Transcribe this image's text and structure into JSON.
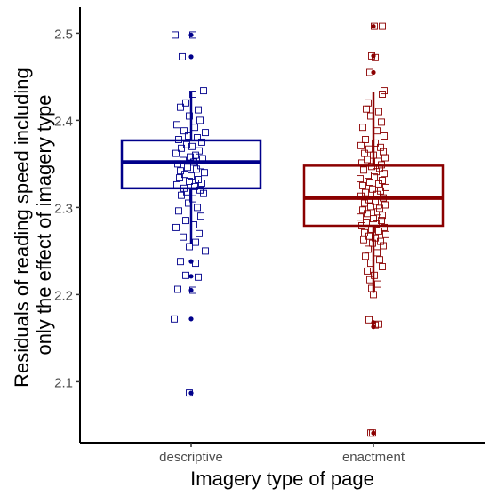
{
  "chart_data": {
    "type": "boxplot",
    "xlabel": "Imagery type of page",
    "ylabel_lines": [
      "Residuals of reading speed including",
      "only the effect of imagery type"
    ],
    "ylim": [
      2.03,
      2.53
    ],
    "yticks": [
      2.1,
      2.2,
      2.3,
      2.4,
      2.5
    ],
    "ytick_labels": [
      "2.1",
      "2.2",
      "2.3",
      "2.4",
      "2.5"
    ],
    "categories": [
      "descriptive",
      "enactment"
    ],
    "grid": false,
    "legend": "none",
    "groups": [
      {
        "category": "descriptive",
        "color": "#00008B",
        "box": {
          "lower_whisker": 2.258,
          "q1": 2.322,
          "median": 2.352,
          "q3": 2.377,
          "upper_whisker": 2.433
        },
        "outliers": [
          2.498,
          2.473,
          2.238,
          2.221,
          2.205,
          2.172,
          2.087
        ],
        "jitter_points": [
          [
            -0.18,
            2.498
          ],
          [
            0.02,
            2.498
          ],
          [
            -0.1,
            2.473
          ],
          [
            0.14,
            2.434
          ],
          [
            0.02,
            2.43
          ],
          [
            -0.06,
            2.42
          ],
          [
            -0.12,
            2.415
          ],
          [
            0.08,
            2.412
          ],
          [
            -0.02,
            2.405
          ],
          [
            0.1,
            2.4
          ],
          [
            -0.16,
            2.395
          ],
          [
            0.04,
            2.392
          ],
          [
            -0.08,
            2.388
          ],
          [
            0.16,
            2.386
          ],
          [
            -0.03,
            2.382
          ],
          [
            0.07,
            2.38
          ],
          [
            -0.14,
            2.378
          ],
          [
            0.12,
            2.375
          ],
          [
            -0.05,
            2.372
          ],
          [
            0.01,
            2.37
          ],
          [
            -0.11,
            2.368
          ],
          [
            0.09,
            2.365
          ],
          [
            -0.17,
            2.362
          ],
          [
            0.05,
            2.36
          ],
          [
            -0.01,
            2.358
          ],
          [
            0.13,
            2.356
          ],
          [
            -0.09,
            2.354
          ],
          [
            0.03,
            2.352
          ],
          [
            -0.15,
            2.35
          ],
          [
            0.11,
            2.348
          ],
          [
            -0.04,
            2.346
          ],
          [
            0.06,
            2.344
          ],
          [
            -0.12,
            2.342
          ],
          [
            0.15,
            2.34
          ],
          [
            -0.07,
            2.338
          ],
          [
            0.0,
            2.336
          ],
          [
            -0.13,
            2.334
          ],
          [
            0.08,
            2.332
          ],
          [
            -0.02,
            2.33
          ],
          [
            0.12,
            2.328
          ],
          [
            -0.16,
            2.326
          ],
          [
            0.04,
            2.324
          ],
          [
            -0.08,
            2.322
          ],
          [
            0.1,
            2.32
          ],
          [
            -0.05,
            2.318
          ],
          [
            0.14,
            2.316
          ],
          [
            -0.11,
            2.314
          ],
          [
            0.02,
            2.31
          ],
          [
            -0.03,
            2.305
          ],
          [
            0.07,
            2.3
          ],
          [
            -0.14,
            2.296
          ],
          [
            0.11,
            2.29
          ],
          [
            -0.06,
            2.285
          ],
          [
            0.03,
            2.28
          ],
          [
            -0.17,
            2.277
          ],
          [
            0.09,
            2.27
          ],
          [
            -0.09,
            2.266
          ],
          [
            0.05,
            2.26
          ],
          [
            -0.02,
            2.255
          ],
          [
            0.16,
            2.25
          ],
          [
            -0.12,
            2.238
          ],
          [
            0.05,
            2.236
          ],
          [
            -0.06,
            2.222
          ],
          [
            0.08,
            2.22
          ],
          [
            -0.15,
            2.206
          ],
          [
            0.02,
            2.205
          ],
          [
            -0.19,
            2.172
          ],
          [
            -0.02,
            2.087
          ]
        ]
      },
      {
        "category": "enactment",
        "color": "#8B0000",
        "box": {
          "lower_whisker": 2.202,
          "q1": 2.279,
          "median": 2.311,
          "q3": 2.348,
          "upper_whisker": 2.433
        },
        "outliers": [
          2.508,
          2.474,
          2.455,
          2.168,
          2.163,
          2.041
        ],
        "jitter_points": [
          [
            0.01,
            2.508
          ],
          [
            0.1,
            2.508
          ],
          [
            -0.02,
            2.474
          ],
          [
            0.02,
            2.472
          ],
          [
            -0.04,
            2.455
          ],
          [
            0.12,
            2.434
          ],
          [
            0.1,
            2.43
          ],
          [
            -0.06,
            2.42
          ],
          [
            -0.08,
            2.413
          ],
          [
            0.06,
            2.41
          ],
          [
            -0.03,
            2.405
          ],
          [
            0.09,
            2.398
          ],
          [
            -0.12,
            2.392
          ],
          [
            0.04,
            2.388
          ],
          [
            0.12,
            2.382
          ],
          [
            -0.09,
            2.378
          ],
          [
            0.02,
            2.374
          ],
          [
            -0.14,
            2.371
          ],
          [
            0.08,
            2.369
          ],
          [
            -0.05,
            2.367
          ],
          [
            0.11,
            2.364
          ],
          [
            -0.1,
            2.362
          ],
          [
            0.0,
            2.36
          ],
          [
            0.13,
            2.357
          ],
          [
            -0.07,
            2.355
          ],
          [
            0.05,
            2.353
          ],
          [
            -0.13,
            2.351
          ],
          [
            0.09,
            2.349
          ],
          [
            -0.02,
            2.347
          ],
          [
            0.07,
            2.345
          ],
          [
            -0.11,
            2.343
          ],
          [
            0.03,
            2.341
          ],
          [
            0.12,
            2.339
          ],
          [
            -0.06,
            2.337
          ],
          [
            0.01,
            2.335
          ],
          [
            -0.15,
            2.333
          ],
          [
            0.1,
            2.331
          ],
          [
            -0.04,
            2.329
          ],
          [
            0.06,
            2.327
          ],
          [
            -0.12,
            2.325
          ],
          [
            0.14,
            2.323
          ],
          [
            -0.01,
            2.321
          ],
          [
            0.08,
            2.319
          ],
          [
            -0.09,
            2.317
          ],
          [
            0.04,
            2.315
          ],
          [
            -0.14,
            2.313
          ],
          [
            0.11,
            2.311
          ],
          [
            -0.05,
            2.309
          ],
          [
            0.02,
            2.307
          ],
          [
            -0.1,
            2.305
          ],
          [
            0.13,
            2.303
          ],
          [
            -0.03,
            2.301
          ],
          [
            0.07,
            2.299
          ],
          [
            -0.12,
            2.297
          ],
          [
            0.05,
            2.295
          ],
          [
            -0.07,
            2.293
          ],
          [
            0.1,
            2.291
          ],
          [
            -0.15,
            2.289
          ],
          [
            0.0,
            2.287
          ],
          [
            0.09,
            2.285
          ],
          [
            -0.08,
            2.283
          ],
          [
            0.03,
            2.281
          ],
          [
            -0.13,
            2.279
          ],
          [
            0.12,
            2.277
          ],
          [
            -0.02,
            2.275
          ],
          [
            0.06,
            2.273
          ],
          [
            -0.1,
            2.271
          ],
          [
            0.14,
            2.269
          ],
          [
            -0.05,
            2.267
          ],
          [
            0.02,
            2.265
          ],
          [
            -0.11,
            2.263
          ],
          [
            0.08,
            2.261
          ],
          [
            -0.01,
            2.259
          ],
          [
            0.11,
            2.256
          ],
          [
            -0.06,
            2.252
          ],
          [
            0.04,
            2.248
          ],
          [
            -0.09,
            2.244
          ],
          [
            0.07,
            2.24
          ],
          [
            -0.03,
            2.236
          ],
          [
            0.1,
            2.232
          ],
          [
            -0.07,
            2.227
          ],
          [
            0.01,
            2.222
          ],
          [
            -0.04,
            2.217
          ],
          [
            0.05,
            2.212
          ],
          [
            -0.02,
            2.207
          ],
          [
            0.0,
            2.2
          ],
          [
            -0.05,
            2.171
          ],
          [
            0.06,
            2.166
          ],
          [
            0.02,
            2.165
          ],
          [
            -0.03,
            2.041
          ],
          [
            -0.01,
            2.041
          ]
        ]
      }
    ]
  }
}
